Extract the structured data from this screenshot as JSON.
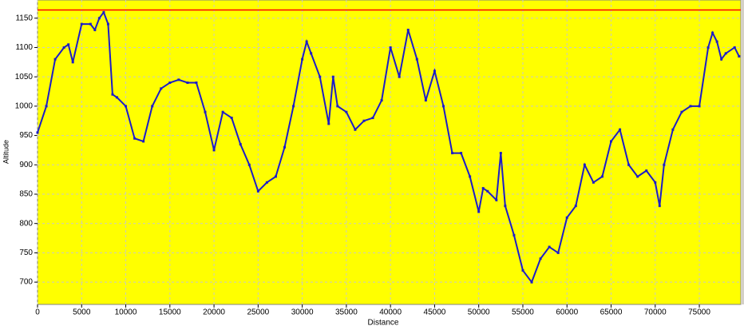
{
  "chart_data": {
    "type": "line",
    "x_label": "Distance",
    "y_label": "Altitude",
    "x": [
      0,
      1000,
      2000,
      3000,
      3500,
      4000,
      5000,
      6000,
      6500,
      7000,
      7500,
      8000,
      8500,
      9000,
      10000,
      11000,
      12000,
      13000,
      14000,
      15000,
      16000,
      17000,
      18000,
      19000,
      20000,
      21000,
      22000,
      23000,
      24000,
      25000,
      26000,
      27000,
      28000,
      29000,
      30000,
      30500,
      31000,
      32000,
      33000,
      33500,
      34000,
      35000,
      36000,
      37000,
      38000,
      39000,
      40000,
      41000,
      42000,
      43000,
      44000,
      45000,
      46000,
      47000,
      48000,
      49000,
      50000,
      50500,
      51000,
      52000,
      52500,
      53000,
      54000,
      55000,
      56000,
      57000,
      58000,
      59000,
      60000,
      61000,
      62000,
      63000,
      64000,
      65000,
      66000,
      67000,
      68000,
      69000,
      70000,
      70500,
      71000,
      72000,
      73000,
      74000,
      75000,
      76000,
      76500,
      77000,
      77500,
      78000,
      79000,
      79500
    ],
    "series": [
      {
        "color": "#1c1cc8",
        "values": [
          955,
          1000,
          1080,
          1100,
          1105,
          1075,
          1140,
          1140,
          1130,
          1150,
          1160,
          1140,
          1020,
          1015,
          1000,
          945,
          940,
          1000,
          1030,
          1040,
          1045,
          1040,
          1040,
          990,
          925,
          990,
          980,
          935,
          900,
          855,
          870,
          880,
          930,
          1000,
          1080,
          1110,
          1090,
          1050,
          970,
          1050,
          1000,
          990,
          960,
          975,
          980,
          1010,
          1100,
          1050,
          1130,
          1080,
          1010,
          1060,
          1000,
          920,
          920,
          880,
          820,
          860,
          855,
          840,
          920,
          830,
          780,
          720,
          700,
          740,
          760,
          750,
          810,
          830,
          900,
          870,
          880,
          940,
          960,
          900,
          880,
          890,
          870,
          830,
          900,
          960,
          990,
          1000,
          1000,
          1100,
          1125,
          1110,
          1080,
          1090,
          1100,
          1085
        ]
      }
    ],
    "xlim": [
      0,
      79700
    ],
    "ylim": [
      662,
      1181
    ],
    "xticks": [
      0,
      5000,
      10000,
      15000,
      20000,
      25000,
      30000,
      35000,
      40000,
      45000,
      50000,
      55000,
      60000,
      65000,
      70000,
      75000
    ],
    "yticks": [
      700,
      750,
      800,
      850,
      900,
      950,
      1000,
      1050,
      1100,
      1150
    ],
    "grid": true,
    "background": "#ffff00",
    "reference_line": {
      "value": 1164,
      "color": "#ff0000"
    }
  }
}
